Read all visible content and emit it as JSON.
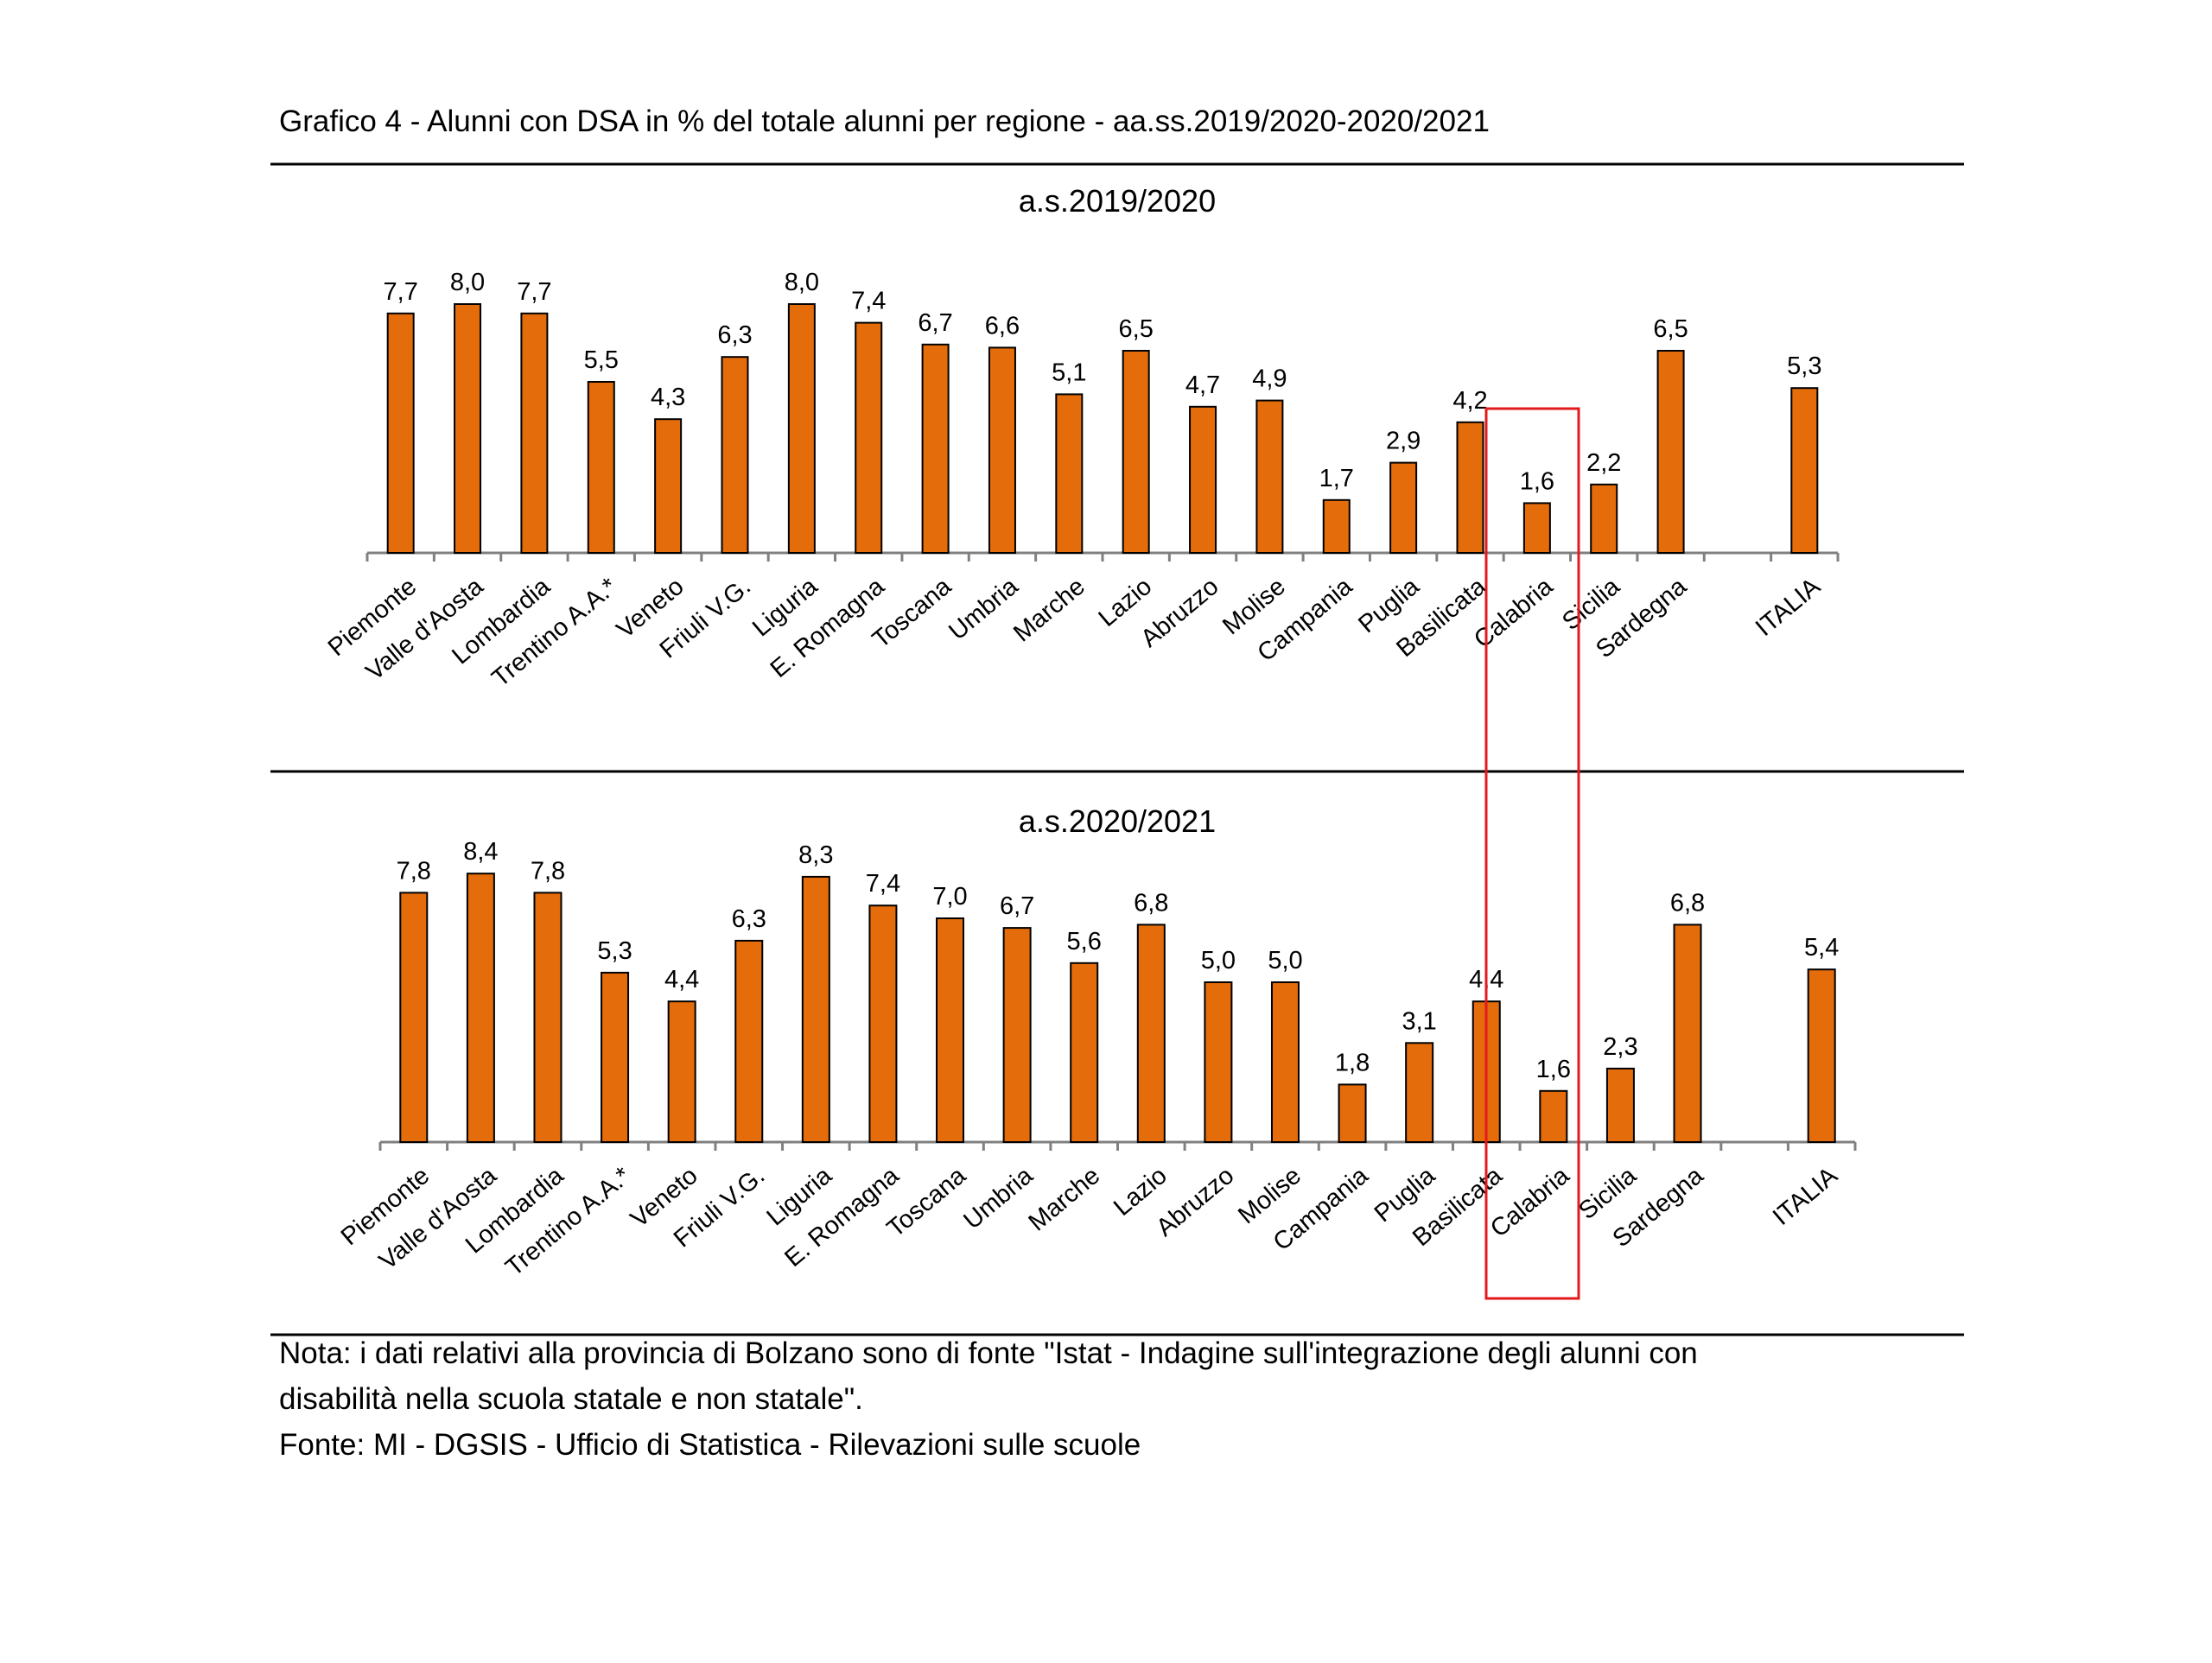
{
  "chart_data": [
    {
      "type": "bar",
      "title": "a.s.2019/2020",
      "categories": [
        "Piemonte",
        "Valle d'Aosta",
        "Lombardia",
        "Trentino A.A.*",
        "Veneto",
        "Friuli V.G.",
        "Liguria",
        "E. Romagna",
        "Toscana",
        "Umbria",
        "Marche",
        "Lazio",
        "Abruzzo",
        "Molise",
        "Campania",
        "Puglia",
        "Basilicata",
        "Calabria",
        "Sicilia",
        "Sardegna",
        "ITALIA"
      ],
      "values": [
        7.7,
        8.0,
        7.7,
        5.5,
        4.3,
        6.3,
        8.0,
        7.4,
        6.7,
        6.6,
        5.1,
        6.5,
        4.7,
        4.9,
        1.7,
        2.9,
        4.2,
        1.6,
        2.2,
        6.5,
        5.3
      ],
      "value_labels": [
        "7,7",
        "8,0",
        "7,7",
        "5,5",
        "4,3",
        "6,3",
        "8,0",
        "7,4",
        "6,7",
        "6,6",
        "5,1",
        "6,5",
        "4,7",
        "4,9",
        "1,7",
        "2,9",
        "4,2",
        "1,6",
        "2,2",
        "6,5",
        "5,3"
      ],
      "ylim": [
        0,
        8.5
      ],
      "xlabel": "",
      "ylabel": ""
    },
    {
      "type": "bar",
      "title": "a.s.2020/2021",
      "categories": [
        "Piemonte",
        "Valle d'Aosta",
        "Lombardia",
        "Trentino A.A.*",
        "Veneto",
        "Friuli V.G.",
        "Liguria",
        "E. Romagna",
        "Toscana",
        "Umbria",
        "Marche",
        "Lazio",
        "Abruzzo",
        "Molise",
        "Campania",
        "Puglia",
        "Basilicata",
        "Calabria",
        "Sicilia",
        "Sardegna",
        "ITALIA"
      ],
      "values": [
        7.8,
        8.4,
        7.8,
        5.3,
        4.4,
        6.3,
        8.3,
        7.4,
        7.0,
        6.7,
        5.6,
        6.8,
        5.0,
        5.0,
        1.8,
        3.1,
        4.4,
        1.6,
        2.3,
        6.8,
        5.4
      ],
      "value_labels": [
        "7,8",
        "8,4",
        "7,8",
        "5,3",
        "4,4",
        "6,3",
        "8,3",
        "7,4",
        "7,0",
        "6,7",
        "5,6",
        "6,8",
        "5,0",
        "5,0",
        "1,8",
        "3,1",
        "4,4",
        "1,6",
        "2,3",
        "6,8",
        "5,4"
      ],
      "ylim": [
        0,
        8.5
      ],
      "xlabel": "",
      "ylabel": ""
    }
  ],
  "header": {
    "title": "Grafico 4 - Alunni con DSA in % del totale alunni per regione - aa.ss.2019/2020-2020/2021"
  },
  "notes": {
    "line1": "Nota: i dati relativi alla provincia di Bolzano sono di fonte \"Istat - Indagine sull'integrazione degli alunni con",
    "line2": "disabilità nella scuola statale e non statale\".",
    "source": "Fonte: MI - DGSIS - Ufficio di Statistica - Rilevazioni sulle scuole"
  },
  "colors": {
    "bar_fill": "#E46C0A",
    "bar_stroke": "#000000",
    "highlight": "#E31A1C",
    "axis": "#808080",
    "rule": "#000000"
  }
}
